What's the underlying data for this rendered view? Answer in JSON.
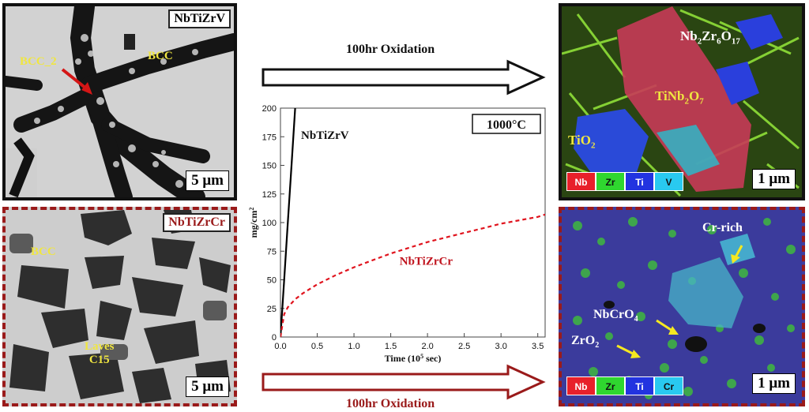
{
  "top_left": {
    "title": "NbTiZrV",
    "phase_main": "BCC",
    "phase_second": "BCC_2",
    "scale": "5 μm"
  },
  "bottom_left": {
    "title": "NbTiZrCr",
    "phase_main": "BCC",
    "laves_line1": "Laves",
    "laves_line2": "C15",
    "scale": "5 μm"
  },
  "top_right": {
    "oxide1_pre": "Nb",
    "oxide1_sub1": "2",
    "oxide1_mid": "Zr",
    "oxide1_sub2": "6",
    "oxide1_mid2": "O",
    "oxide1_sub3": "17",
    "oxide2_pre": "TiNb",
    "oxide2_sub1": "2",
    "oxide2_mid": "O",
    "oxide2_sub2": "7",
    "oxide3_pre": "TiO",
    "oxide3_sub": "2",
    "scale": "1 μm",
    "legend": [
      {
        "label": "Nb",
        "color": "#e8202a"
      },
      {
        "label": "Zr",
        "color": "#2fd62f"
      },
      {
        "label": "Ti",
        "color": "#2233e0"
      },
      {
        "label": "V",
        "color": "#29c9f0"
      }
    ]
  },
  "bottom_right": {
    "cr_rich": "Cr-rich",
    "ox1_pre": "NbCrO",
    "ox1_sub": "4",
    "ox2_pre": "ZrO",
    "ox2_sub": "2",
    "scale": "1 μm",
    "legend": [
      {
        "label": "Nb",
        "color": "#e8202a"
      },
      {
        "label": "Zr",
        "color": "#2fd62f"
      },
      {
        "label": "Ti",
        "color": "#2233e0"
      },
      {
        "label": "Cr",
        "color": "#29c9f0"
      }
    ]
  },
  "arrows": {
    "top_label": "100hr Oxidation",
    "bottom_label": "100hr Oxidation"
  },
  "chart_data": {
    "type": "line",
    "x_ticks": [
      "0.0",
      "0.5",
      "1.0",
      "1.5",
      "2.0",
      "2.5",
      "3.0",
      "3.5"
    ],
    "y_ticks": [
      "0",
      "25",
      "50",
      "75",
      "100",
      "125",
      "150",
      "175",
      "200"
    ],
    "xlim": [
      0,
      3.6
    ],
    "ylim": [
      0,
      200
    ],
    "xlabel": "Time (10",
    "xlabel_sup": "5",
    "xlabel_end": " sec)",
    "ylabel": "mg/cm",
    "ylabel_sup": "2",
    "temperature": "1000°C",
    "series": [
      {
        "name": "NbTiZrV",
        "color": "#000000",
        "style": "solid",
        "x": [
          0,
          0.05,
          0.1,
          0.15,
          0.2
        ],
        "y": [
          0,
          50,
          100,
          150,
          200
        ]
      },
      {
        "name": "NbTiZrCr",
        "color": "#e0141e",
        "style": "dashed",
        "x": [
          0,
          0.05,
          0.1,
          0.2,
          0.3,
          0.5,
          0.75,
          1.0,
          1.25,
          1.5,
          1.75,
          2.0,
          2.25,
          2.5,
          2.75,
          3.0,
          3.25,
          3.5,
          3.6
        ],
        "y": [
          0,
          20,
          26,
          33,
          38,
          46,
          54,
          61,
          67,
          73,
          78,
          83,
          87,
          91,
          95,
          99,
          102,
          105,
          107
        ]
      }
    ]
  }
}
